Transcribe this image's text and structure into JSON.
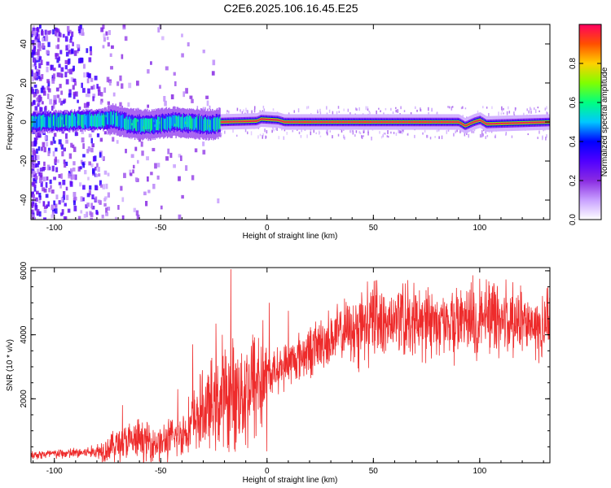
{
  "figure_title": "C2E6.2025.106.16.45.E25",
  "colors": {
    "snr_line": "#ee2b2b",
    "axes": "#000000"
  },
  "colorbar": {
    "label": "Normalized spectral amplitude",
    "ticks": [
      0.0,
      0.2,
      0.4,
      0.6,
      0.8
    ],
    "tick_labels": [
      "0.0",
      "0.2",
      "0.4",
      "0.6",
      "0.8"
    ],
    "range": [
      0,
      1
    ],
    "colormap": [
      "#ffffff",
      "#c8a0ff",
      "#8a2be2",
      "#5000ff",
      "#0000ff",
      "#00c8ff",
      "#00ff80",
      "#80ff00",
      "#ffd000",
      "#ff5000",
      "#ff0060"
    ]
  },
  "chart_data": [
    {
      "id": "spectrum",
      "type": "heatmap",
      "title": "",
      "xlabel": "Height of straight line (km)",
      "ylabel": "Frequency (Hz)",
      "xlim": [
        -111,
        133
      ],
      "ylim": [
        -50,
        50
      ],
      "xticks": [
        -100,
        -50,
        0,
        50,
        100
      ],
      "xtick_labels": [
        "-100",
        "-50",
        "0",
        "50",
        "100"
      ],
      "yticks": [
        -40,
        -20,
        0,
        20,
        40
      ],
      "ytick_labels": [
        "-40",
        "-20",
        "0",
        "20",
        "40"
      ],
      "grid": false,
      "main_band": {
        "centerline": [
          [
            -111,
            0
          ],
          [
            -80,
            1
          ],
          [
            -72,
            1.5
          ],
          [
            -65,
            -1
          ],
          [
            -55,
            -1.5
          ],
          [
            -45,
            0
          ],
          [
            -25,
            -1.5
          ],
          [
            -22,
            0
          ],
          [
            -5,
            0.5
          ],
          [
            -3,
            1.5
          ],
          [
            5,
            1
          ],
          [
            8,
            0
          ],
          [
            40,
            0
          ],
          [
            90,
            0
          ],
          [
            93,
            -2
          ],
          [
            97,
            0
          ],
          [
            100,
            1
          ],
          [
            103,
            -1
          ],
          [
            133,
            0
          ]
        ],
        "strong_from": -22,
        "noise_until": -35
      }
    },
    {
      "id": "snr",
      "type": "line",
      "title": "",
      "xlabel": "Height of straight line (km)",
      "ylabel": "SNR (10 * v/v)",
      "xlim": [
        -111,
        133
      ],
      "ylim": [
        0,
        6100
      ],
      "xticks": [
        -100,
        -50,
        0,
        50,
        100
      ],
      "xtick_labels": [
        "-100",
        "-50",
        "0",
        "50",
        "100"
      ],
      "yticks": [
        2000,
        4000,
        6000
      ],
      "ytick_labels": [
        "2000",
        "4000",
        "6000"
      ],
      "grid": false,
      "series": [
        {
          "trend": [
            [
              -111,
              250
            ],
            [
              -90,
              300
            ],
            [
              -80,
              350
            ],
            [
              -75,
              450
            ],
            [
              -70,
              600
            ],
            [
              -60,
              700
            ],
            [
              -50,
              600
            ],
            [
              -40,
              900
            ],
            [
              -30,
              1600
            ],
            [
              -20,
              2000
            ],
            [
              -10,
              2300
            ],
            [
              0,
              2700
            ],
            [
              10,
              3100
            ],
            [
              20,
              3500
            ],
            [
              30,
              3900
            ],
            [
              40,
              4200
            ],
            [
              50,
              4300
            ],
            [
              60,
              4400
            ],
            [
              70,
              4350
            ],
            [
              80,
              4350
            ],
            [
              90,
              4450
            ],
            [
              100,
              4500
            ],
            [
              110,
              4500
            ],
            [
              120,
              4400
            ],
            [
              133,
              4200
            ]
          ],
          "spikes": [
            [
              -17,
              6050
            ],
            [
              -24,
              4350
            ],
            [
              1,
              5000
            ],
            [
              -68,
              1800
            ],
            [
              -42,
              2300
            ],
            [
              -35,
              3700
            ],
            [
              10,
              4750
            ],
            [
              51,
              5700
            ],
            [
              100,
              5750
            ],
            [
              -21,
              4000
            ],
            [
              -4,
              3900
            ]
          ]
        }
      ]
    }
  ]
}
